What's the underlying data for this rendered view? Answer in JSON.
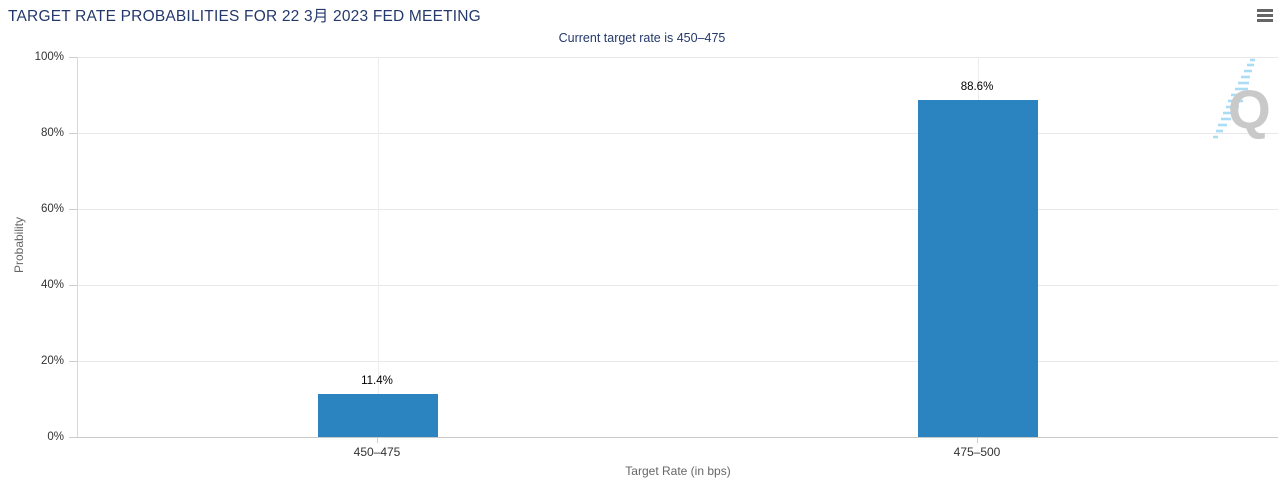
{
  "chart": {
    "menu_icon": "hamburger-menu-icon"
  },
  "chart_data": {
    "type": "bar",
    "title": "TARGET RATE PROBABILITIES FOR 22 3月 2023 FED MEETING",
    "subtitle": "Current target rate is 450–475",
    "xlabel": "Target Rate (in bps)",
    "ylabel": "Probability",
    "categories": [
      "450–475",
      "475–500"
    ],
    "values": [
      11.4,
      88.6
    ],
    "data_labels": [
      "11.4%",
      "88.6%"
    ],
    "ylim": [
      0,
      100
    ],
    "ytick_values": [
      0,
      20,
      40,
      60,
      80,
      100
    ],
    "ytick_labels": [
      "0%",
      "20%",
      "40%",
      "60%",
      "80%",
      "100%"
    ],
    "grid": true,
    "legend": "none",
    "bar_color": "#2b83bf",
    "watermark_letter": "Q"
  },
  "colors": {
    "title": "#24396b",
    "bar": "#2b83bf",
    "watermark_gray": "#c9c9c9",
    "watermark_blue": "#aadcf6"
  }
}
